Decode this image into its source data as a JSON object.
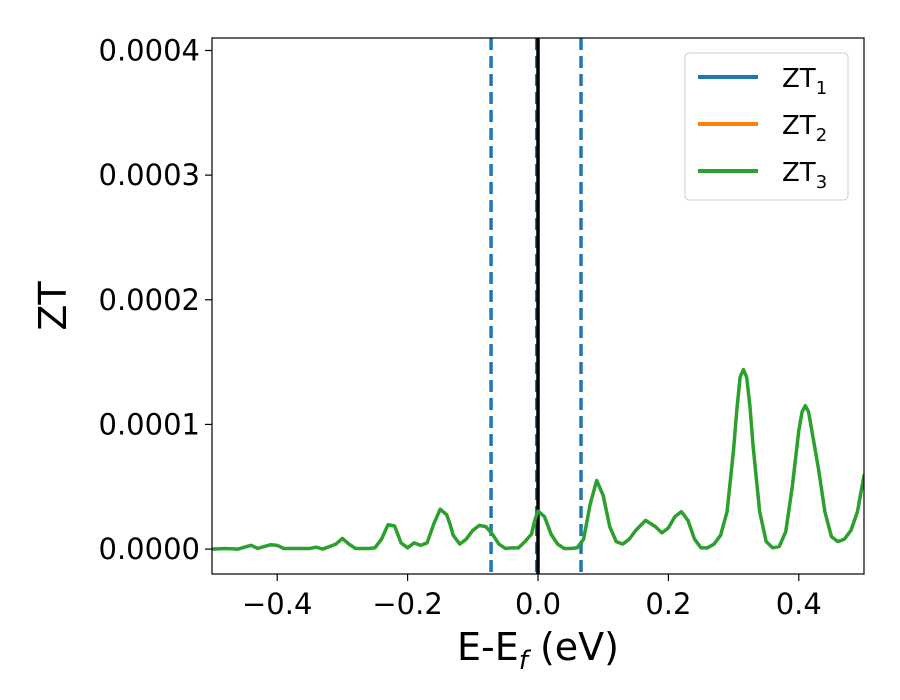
{
  "chart_data": {
    "type": "line",
    "xlabel": {
      "main": "E-E",
      "sub": "f",
      "suffix": " (eV)"
    },
    "ylabel": "ZT",
    "xlim": [
      -0.5,
      0.5
    ],
    "ylim": [
      -2e-05,
      0.00041
    ],
    "xticks": [
      {
        "value": -0.4,
        "label": "−0.4"
      },
      {
        "value": -0.2,
        "label": "−0.2"
      },
      {
        "value": 0.0,
        "label": "0.0"
      },
      {
        "value": 0.2,
        "label": "0.2"
      },
      {
        "value": 0.4,
        "label": "0.4"
      }
    ],
    "yticks": [
      {
        "value": 0.0,
        "label": "0.0000"
      },
      {
        "value": 0.0001,
        "label": "0.0001"
      },
      {
        "value": 0.0002,
        "label": "0.0002"
      },
      {
        "value": 0.0003,
        "label": "0.0003"
      },
      {
        "value": 0.0004,
        "label": "0.0004"
      }
    ],
    "grid": false,
    "legend_position": "top-right",
    "series": [
      {
        "name": "ZT",
        "sub": "1",
        "color": "#1f77b4",
        "visible": false
      },
      {
        "name": "ZT",
        "sub": "2",
        "color": "#ff7f0e",
        "visible": false
      },
      {
        "name": "ZT",
        "sub": "3",
        "color": "#2ca02c",
        "visible": true
      }
    ],
    "curve": {
      "x": [
        -0.5,
        -0.48,
        -0.46,
        -0.45,
        -0.44,
        -0.43,
        -0.41,
        -0.4,
        -0.39,
        -0.38,
        -0.37,
        -0.35,
        -0.34,
        -0.33,
        -0.31,
        -0.3,
        -0.29,
        -0.28,
        -0.27,
        -0.26,
        -0.25,
        -0.24,
        -0.23,
        -0.22,
        -0.21,
        -0.2,
        -0.19,
        -0.18,
        -0.17,
        -0.16,
        -0.15,
        -0.14,
        -0.135,
        -0.13,
        -0.12,
        -0.11,
        -0.1,
        -0.09,
        -0.08,
        -0.07,
        -0.06,
        -0.05,
        -0.04,
        -0.03,
        -0.02,
        -0.01,
        -0.005,
        0.0,
        0.01,
        0.02,
        0.03,
        0.04,
        0.05,
        0.06,
        0.07,
        0.08,
        0.09,
        0.1,
        0.11,
        0.12,
        0.13,
        0.14,
        0.15,
        0.165,
        0.18,
        0.19,
        0.2,
        0.21,
        0.22,
        0.23,
        0.24,
        0.25,
        0.26,
        0.27,
        0.28,
        0.29,
        0.3,
        0.305,
        0.31,
        0.315,
        0.32,
        0.325,
        0.33,
        0.34,
        0.35,
        0.36,
        0.37,
        0.38,
        0.39,
        0.4,
        0.405,
        0.41,
        0.415,
        0.42,
        0.43,
        0.44,
        0.45,
        0.46,
        0.47,
        0.48,
        0.49,
        0.5
      ],
      "y": [
        0.0,
        5e-07,
        0.0,
        1.5e-06,
        3e-06,
        5e-07,
        3.5e-06,
        3e-06,
        5e-07,
        5e-07,
        5e-07,
        5e-07,
        1.5e-06,
        0.0,
        4e-06,
        8.5e-06,
        4e-06,
        5e-07,
        5e-07,
        5e-07,
        1e-06,
        8e-06,
        1.95e-05,
        1.85e-05,
        5e-06,
        1e-06,
        5e-06,
        3e-06,
        5e-06,
        2e-05,
        3.2e-05,
        2.75e-05,
        2e-05,
        1.1e-05,
        4e-06,
        8e-06,
        1.5e-05,
        1.9e-05,
        1.8e-05,
        1.2e-05,
        4e-06,
        5e-07,
        1e-06,
        1e-06,
        6e-06,
        1.2e-05,
        2.3e-05,
        3.05e-05,
        2.6e-05,
        1.2e-05,
        4e-06,
        5e-07,
        5e-07,
        1e-06,
        8e-06,
        3.6e-05,
        5.5e-05,
        4.3e-05,
        1.8e-05,
        6e-06,
        4e-06,
        8e-06,
        1.5e-05,
        2.3e-05,
        1.8e-05,
        1.3e-05,
        1.7e-05,
        2.6e-05,
        3e-05,
        2.3e-05,
        8e-06,
        1e-06,
        1e-06,
        4e-06,
        1.1e-05,
        3e-05,
        8e-05,
        0.000112,
        0.000138,
        0.000144,
        0.000138,
        0.000115,
        8.2e-05,
        3e-05,
        6e-06,
        1e-06,
        2e-06,
        1.4e-05,
        5e-05,
        9.5e-05,
        0.00011,
        0.000115,
        0.00011,
        9.5e-05,
        6.5e-05,
        3e-05,
        1e-05,
        6e-06,
        8e-06,
        1.5e-05,
        3e-05,
        5.9e-05
      ]
    },
    "vlines": [
      {
        "x": -0.072,
        "style": "dashed",
        "color": "#1f77b4"
      },
      {
        "x": 0.066,
        "style": "dashed",
        "color": "#1f77b4"
      },
      {
        "x": -0.002,
        "style": "dashed",
        "color": "#1f77b4"
      },
      {
        "x": 0.0,
        "style": "solid",
        "color": "#000000"
      }
    ]
  }
}
